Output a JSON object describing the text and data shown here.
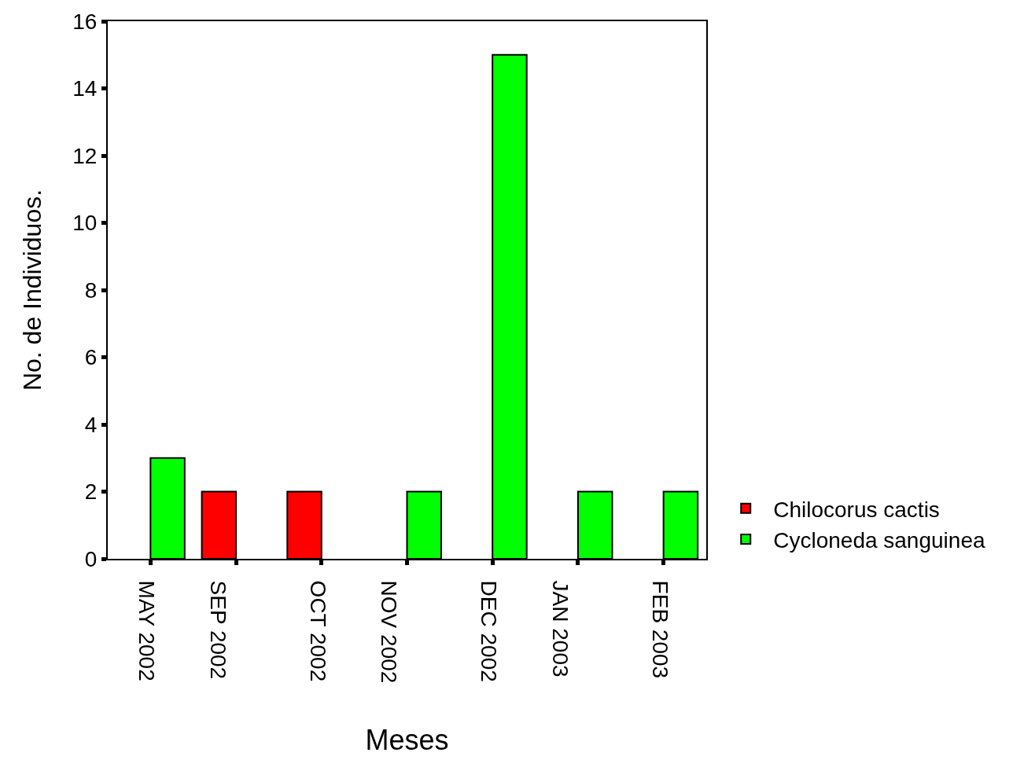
{
  "chart_data": {
    "type": "bar",
    "xlabel": "Meses",
    "ylabel": "No. de Individuos.",
    "categories": [
      "MAY 2002",
      "SEP 2002",
      "OCT 2002",
      "NOV 2002",
      "DEC 2002",
      "JAN 2003",
      "FEB 2003"
    ],
    "series": [
      {
        "name": "Chilocorus cactis",
        "color": "#ff0000",
        "values": [
          null,
          2,
          2,
          null,
          null,
          null,
          null
        ]
      },
      {
        "name": "Cycloneda sanguinea",
        "color": "#00ff00",
        "values": [
          3,
          null,
          null,
          2,
          15,
          2,
          2
        ]
      }
    ],
    "ylim": [
      0,
      16
    ],
    "yticks": [
      0,
      2,
      4,
      6,
      8,
      10,
      12,
      14,
      16
    ],
    "grid": false,
    "legend": "bottom right"
  }
}
